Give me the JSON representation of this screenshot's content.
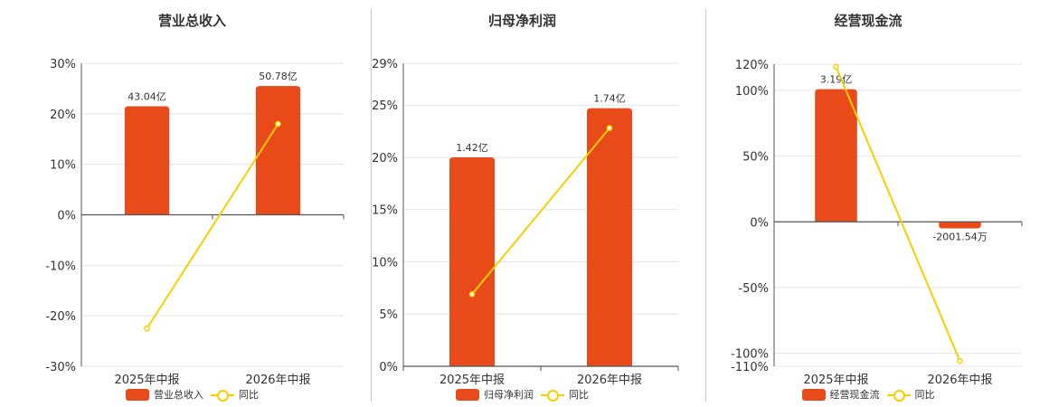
{
  "colors": {
    "bar": "#E84A1A",
    "line": "#F5D000",
    "grid": "#E4E4E4",
    "axis": "#555555"
  },
  "legend_line_label": "同比",
  "chart_data": [
    {
      "type": "bar",
      "title": "营业总收入",
      "categories": [
        "2025年中报",
        "2026年中报"
      ],
      "series": [
        {
          "name": "营业总收入",
          "type": "bar",
          "values": [
            21.5,
            25.5
          ],
          "labels": [
            "43.04亿",
            "50.78亿"
          ]
        },
        {
          "name": "同比",
          "type": "line",
          "values": [
            -22.5,
            18
          ]
        }
      ],
      "ylim": [
        -30,
        30
      ],
      "yticks": [
        30,
        20,
        10,
        0,
        -10,
        -20,
        -30
      ],
      "ytick_labels": [
        "30%",
        "20%",
        "10%",
        "0%",
        "-10%",
        "-20%",
        "-30%"
      ],
      "grid": true,
      "legend": "bottom"
    },
    {
      "type": "bar",
      "title": "归母净利润",
      "categories": [
        "2025年中报",
        "2026年中报"
      ],
      "series": [
        {
          "name": "归母净利润",
          "type": "bar",
          "values": [
            20,
            24.7
          ],
          "labels": [
            "1.42亿",
            "1.74亿"
          ]
        },
        {
          "name": "同比",
          "type": "line",
          "values": [
            6.9,
            22.8
          ]
        }
      ],
      "ylim": [
        0,
        29
      ],
      "yticks": [
        29,
        25,
        20,
        15,
        10,
        5,
        0
      ],
      "ytick_labels": [
        "29%",
        "25%",
        "20%",
        "15%",
        "10%",
        "5%",
        "0%"
      ],
      "grid": true,
      "legend": "bottom"
    },
    {
      "type": "bar",
      "title": "经营现金流",
      "categories": [
        "2025年中报",
        "2026年中报"
      ],
      "series": [
        {
          "name": "经营现金流",
          "type": "bar",
          "values": [
            101,
            -5
          ],
          "labels": [
            "3.19亿",
            "-2001.54万"
          ]
        },
        {
          "name": "同比",
          "type": "line",
          "values": [
            118,
            -106
          ]
        }
      ],
      "ylim": [
        -110,
        120
      ],
      "yticks": [
        120,
        100,
        50,
        0,
        -50,
        -100,
        -110
      ],
      "ytick_labels": [
        "120%",
        "100%",
        "50%",
        "0%",
        "-50%",
        "-100%",
        "-110%"
      ],
      "grid": true,
      "legend": "bottom"
    }
  ]
}
